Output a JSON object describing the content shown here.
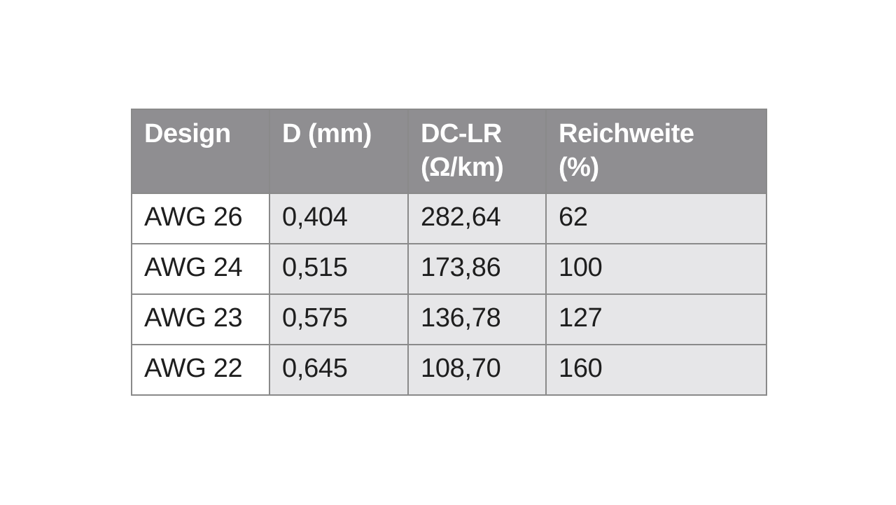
{
  "table": {
    "headers": [
      [
        "Design"
      ],
      [
        "D (mm)"
      ],
      [
        "DC-LR",
        "(Ω/km)"
      ],
      [
        "Reichweite",
        "(%)"
      ]
    ],
    "rows": [
      [
        "AWG 26",
        "0,404",
        "282,64",
        "62"
      ],
      [
        "AWG 24",
        "0,515",
        "173,86",
        "100"
      ],
      [
        "AWG 23",
        "0,575",
        "136,78",
        "127"
      ],
      [
        "AWG 22",
        "0,645",
        "108,70",
        "160"
      ]
    ]
  },
  "colors": {
    "header_bg": "#8f8e91",
    "header_text": "#ffffff",
    "cell_shaded": "#e6e6e8",
    "cell_white": "#ffffff",
    "border": "#8a8a8a"
  }
}
